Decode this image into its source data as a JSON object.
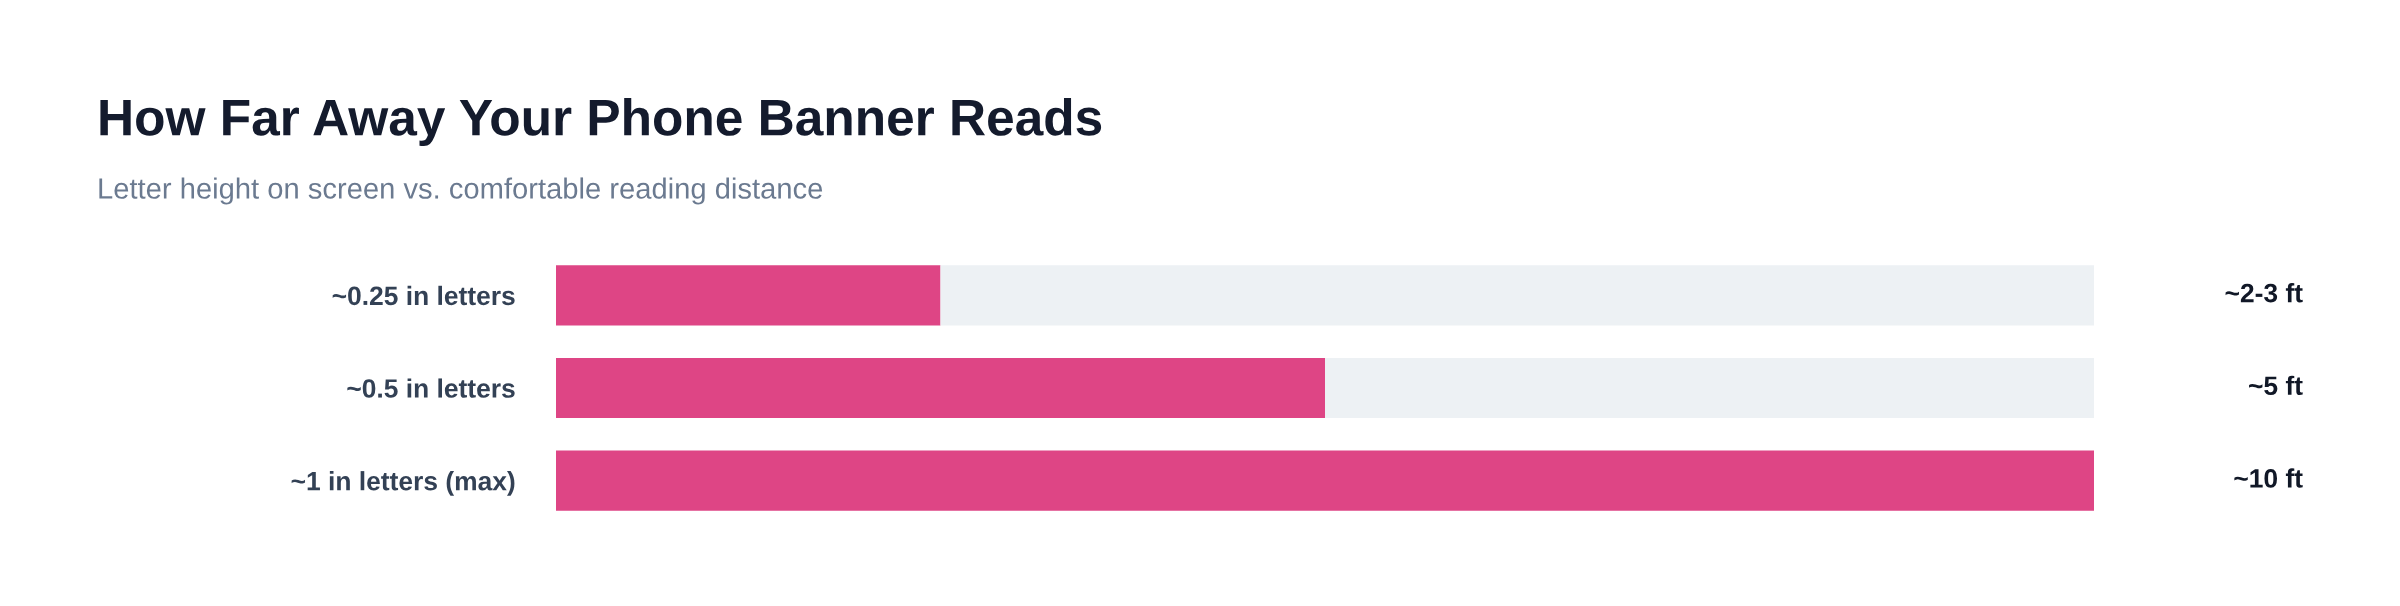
{
  "chart_data": {
    "type": "bar",
    "orientation": "horizontal",
    "stacked": true,
    "tick_labels": "y",
    "xlim": [
      0,
      10
    ],
    "title": "How Far Away Your Phone Banner Reads",
    "subtitle": "Letter height on screen vs. comfortable reading distance",
    "categories": [
      "~0.25 in letters",
      "~0.5 in letters",
      "~1 in letters (max)"
    ],
    "series": [
      {
        "color": "#de4585",
        "values": [
          2.5,
          5,
          10
        ],
        "value_labels": [
          "~2-3 ft",
          "~5 ft",
          "~10 ft"
        ]
      },
      {
        "color": "#edf1f4",
        "values": [
          7.5,
          5,
          null
        ]
      }
    ]
  }
}
